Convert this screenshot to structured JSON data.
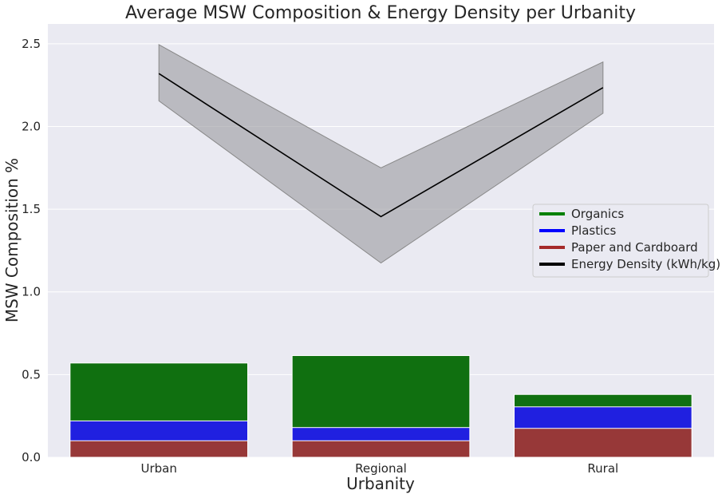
{
  "chart_data": {
    "type": "bar",
    "title": "Average MSW Composition & Energy Density per Urbanity",
    "xlabel": "Urbanity",
    "ylabel": "MSW Composition %",
    "categories": [
      "Urban",
      "Regional",
      "Rural"
    ],
    "ylim": [
      0,
      2.62
    ],
    "yticks": [
      "0.0",
      "0.5",
      "1.0",
      "1.5",
      "2.0",
      "2.5"
    ],
    "grid": true,
    "legend_position": "center-right",
    "series": [
      {
        "name": "Organics",
        "type": "bar",
        "color": "#107010",
        "values": [
          0.57,
          0.615,
          0.38
        ]
      },
      {
        "name": "Plastics",
        "type": "bar",
        "color": "#2020e0",
        "values": [
          0.22,
          0.18,
          0.305
        ]
      },
      {
        "name": "Paper and Cardboard",
        "type": "bar",
        "color": "#973838",
        "values": [
          0.1,
          0.1,
          0.175
        ]
      },
      {
        "name": "Energy Density (kWh/kg)",
        "type": "line",
        "color": "#000000",
        "values": [
          2.32,
          1.455,
          2.235
        ],
        "ci_lower": [
          2.155,
          1.175,
          2.08
        ],
        "ci_upper": [
          2.495,
          1.75,
          2.39
        ]
      }
    ],
    "legend_colors": [
      "#008000",
      "#0000ff",
      "#a52a2a",
      "#000000"
    ]
  }
}
